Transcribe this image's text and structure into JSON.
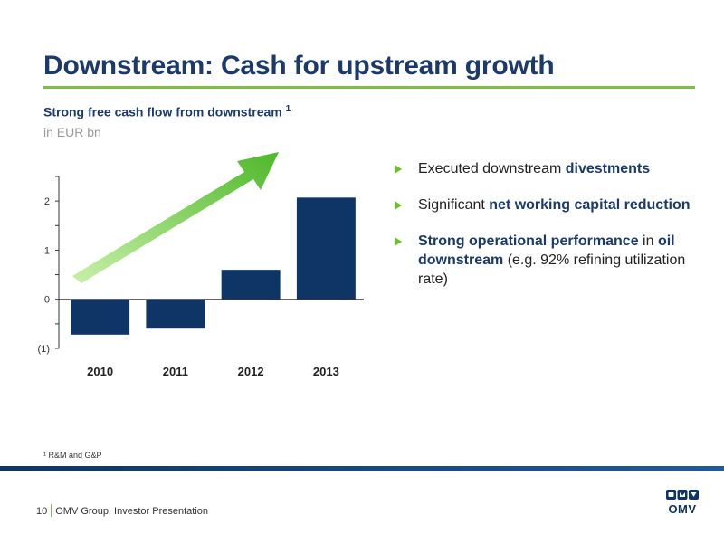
{
  "slide": {
    "title": "Downstream: Cash for upstream growth",
    "subtitle": "Strong free cash flow from downstream",
    "subtitle_note": "1",
    "unit": "in EUR bn"
  },
  "chart_data": {
    "type": "bar",
    "categories": [
      "2010",
      "2011",
      "2012",
      "2013"
    ],
    "values": [
      -0.72,
      -0.58,
      0.6,
      2.07
    ],
    "ylim": [
      -1,
      2.5
    ],
    "yticks": [
      -1,
      0,
      1,
      2
    ],
    "ytick_labels": [
      "(1)",
      "0",
      "1",
      "2"
    ],
    "title": "",
    "xlabel": "",
    "ylabel": "",
    "bar_color": "#0e3566",
    "annotation": "upward-trend-arrow"
  },
  "bullets": [
    [
      {
        "t": "Executed downstream "
      },
      {
        "t": "divestments",
        "b": true
      }
    ],
    [
      {
        "t": "Significant "
      },
      {
        "t": "net working capital reduction",
        "b": true
      }
    ],
    [
      {
        "t": "Strong operational performance",
        "b": true
      },
      {
        "t": " in "
      },
      {
        "t": "oil downstream",
        "b": true
      },
      {
        "t": " (e.g. 92% refining utilization rate)"
      }
    ]
  ],
  "footnote": "¹ R&M and G&P",
  "footer": {
    "page_number": "10",
    "text": "OMV Group, Investor Presentation",
    "logo": "OMV"
  },
  "colors": {
    "primary": "#1b3a6b",
    "accent": "#7bc043",
    "bar": "#0e3566"
  }
}
